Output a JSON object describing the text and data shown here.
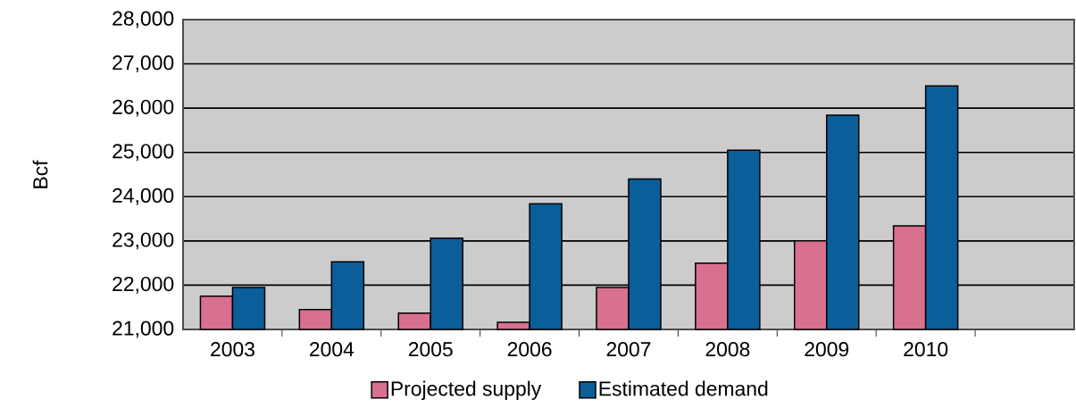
{
  "chart_data": {
    "type": "bar",
    "ylabel": "Bcf",
    "categories": [
      "2003",
      "2004",
      "2005",
      "2006",
      "2007",
      "2008",
      "2009",
      "2010",
      null
    ],
    "series": [
      {
        "name": "Projected supply",
        "color": "#d87090",
        "values": [
          21750,
          21450,
          21370,
          21160,
          21950,
          22500,
          23000,
          23340,
          null
        ]
      },
      {
        "name": "Estimated demand",
        "color": "#0a5f9a",
        "values": [
          21950,
          22530,
          23060,
          23840,
          24400,
          25050,
          25840,
          26500,
          null
        ]
      }
    ],
    "ylim": [
      21000,
      28000
    ],
    "yticks": [
      {
        "value": 21000,
        "label": "21,000"
      },
      {
        "value": 22000,
        "label": "22,000"
      },
      {
        "value": 23000,
        "label": "23,000"
      },
      {
        "value": 24000,
        "label": "24,000"
      },
      {
        "value": 25000,
        "label": "25,000"
      },
      {
        "value": 26000,
        "label": "26,000"
      },
      {
        "value": 27000,
        "label": "27,000"
      },
      {
        "value": 28000,
        "label": "28,000"
      }
    ],
    "grid": "y",
    "legend": "bottom"
  }
}
